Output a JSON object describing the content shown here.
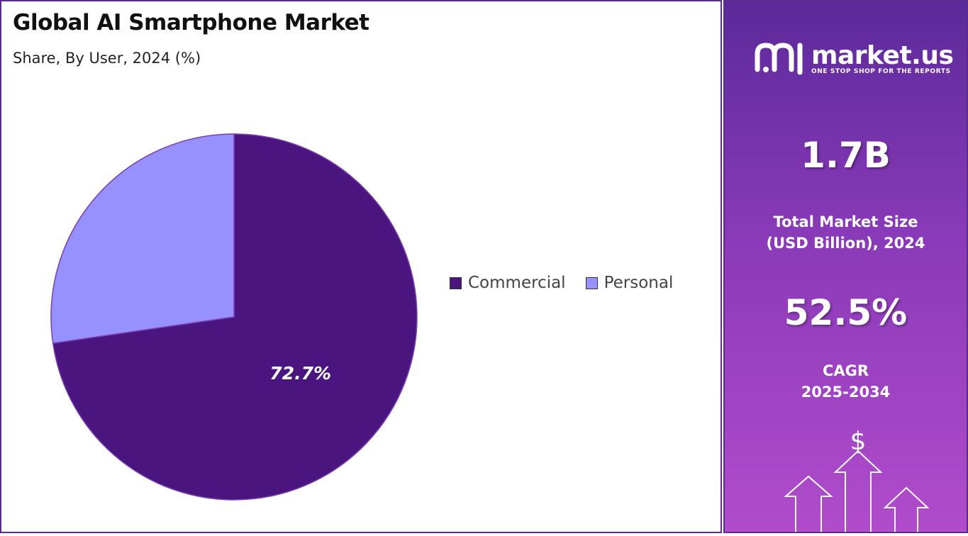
{
  "header": {
    "title": "Global AI Smartphone Market",
    "subtitle": "Share, By User, 2024 (%)"
  },
  "chart_data": {
    "type": "pie",
    "title": "Global AI Smartphone Market",
    "subtitle": "Share, By User, 2024 (%)",
    "categories": [
      "Commercial",
      "Personal"
    ],
    "values": [
      72.7,
      27.3
    ],
    "data_labels": [
      "72.7%",
      ""
    ],
    "colors": [
      "#4b1580",
      "#9691fe"
    ],
    "legend_position": "right"
  },
  "legend": {
    "items": [
      {
        "label": "Commercial",
        "color": "#4b1580"
      },
      {
        "label": "Personal",
        "color": "#9691fe"
      }
    ]
  },
  "sidebar": {
    "logo": {
      "name": "market.us",
      "tagline": "ONE STOP SHOP FOR THE REPORTS",
      "icon": "market-us-logo-icon"
    },
    "market_size": {
      "value": "1.7B",
      "label_line1": "Total Market Size",
      "label_line2": "(USD Billion), 2024"
    },
    "cagr": {
      "value": "52.5%",
      "label_line1": "CAGR",
      "label_line2": "2025-2034"
    },
    "growth_icon": {
      "icon": "dollar-growth-arrows-icon",
      "symbol": "$"
    }
  }
}
